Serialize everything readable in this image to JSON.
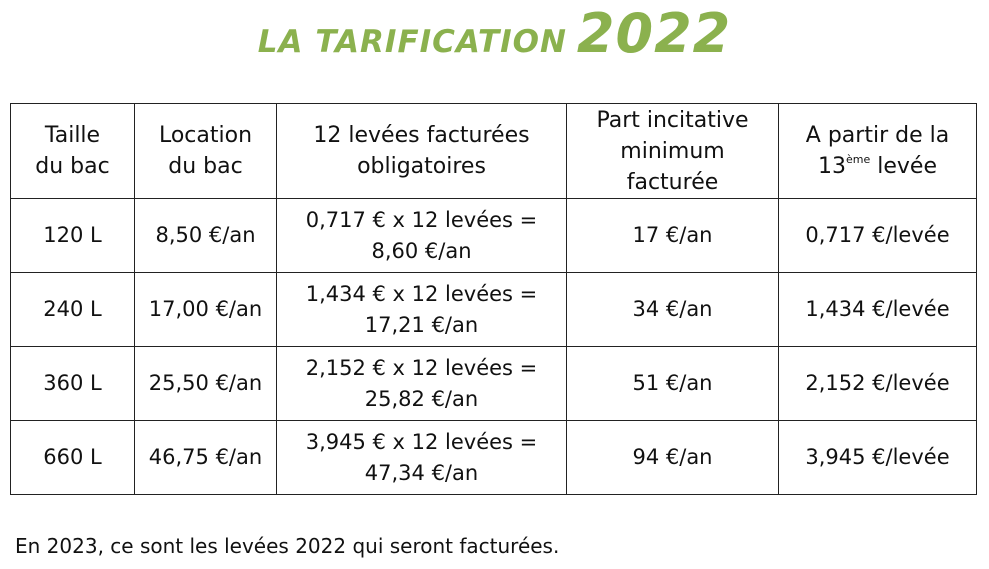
{
  "title": {
    "text": "LA TARIFICATION",
    "year": "2022"
  },
  "colors": {
    "title_green": "#8bb14e",
    "border": "#222222",
    "text": "#111111"
  },
  "table": {
    "headers": {
      "size": [
        "Taille",
        "du bac"
      ],
      "rental": [
        "Location",
        "du bac"
      ],
      "twelve": [
        "12 levées facturées",
        "obligatoires"
      ],
      "incentive": [
        "Part incitative",
        "minimum",
        "facturée"
      ],
      "from13": {
        "line1": "A partir de la",
        "num": "13",
        "sup": "ème",
        "word": "levée"
      }
    },
    "rows": [
      {
        "size": "120 L",
        "rental": "8,50 €/an",
        "twelve": [
          "0,717 € x 12 levées =",
          "8,60 €/an"
        ],
        "incentive": "17 €/an",
        "from13": "0,717 €/levée"
      },
      {
        "size": "240 L",
        "rental": "17,00 €/an",
        "twelve": [
          "1,434 € x 12 levées =",
          "17,21 €/an"
        ],
        "incentive": "34 €/an",
        "from13": "1,434 €/levée"
      },
      {
        "size": "360 L",
        "rental": "25,50 €/an",
        "twelve": [
          "2,152 € x 12 levées =",
          "25,82 €/an"
        ],
        "incentive": "51 €/an",
        "from13": "2,152 €/levée"
      },
      {
        "size": "660 L",
        "rental": "46,75 €/an",
        "twelve": [
          "3,945 € x 12 levées =",
          "47,34 €/an"
        ],
        "incentive": "94 €/an",
        "from13": "3,945 €/levée"
      }
    ]
  },
  "footer": "En 2023, ce sont les levées 2022 qui seront facturées."
}
